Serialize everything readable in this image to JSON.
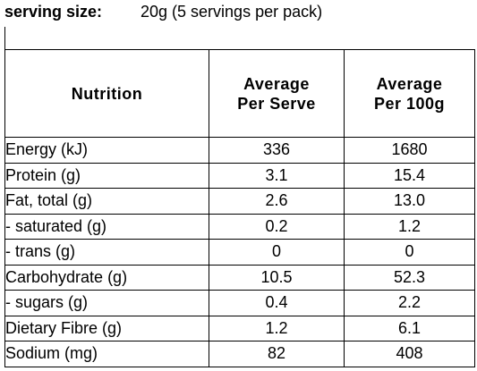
{
  "serving": {
    "label": "serving size:",
    "value": "20g (5 servings per pack)"
  },
  "table": {
    "header": [
      "Nutrition",
      "Average\nPer Serve",
      "Average\nPer 100g"
    ],
    "rows": [
      [
        "Energy (kJ)",
        "336",
        "1680"
      ],
      [
        "Protein (g)",
        "3.1",
        "15.4"
      ],
      [
        "Fat, total (g)",
        "2.6",
        "13.0"
      ],
      [
        "- saturated (g)",
        "0.2",
        "1.2"
      ],
      [
        "- trans (g)",
        "0",
        "0"
      ],
      [
        "Carbohydrate (g)",
        "10.5",
        "52.3"
      ],
      [
        "- sugars (g)",
        "0.4",
        "2.2"
      ],
      [
        "Dietary Fibre (g)",
        "1.2",
        "6.1"
      ],
      [
        "Sodium (mg)",
        "82",
        "408"
      ]
    ]
  }
}
